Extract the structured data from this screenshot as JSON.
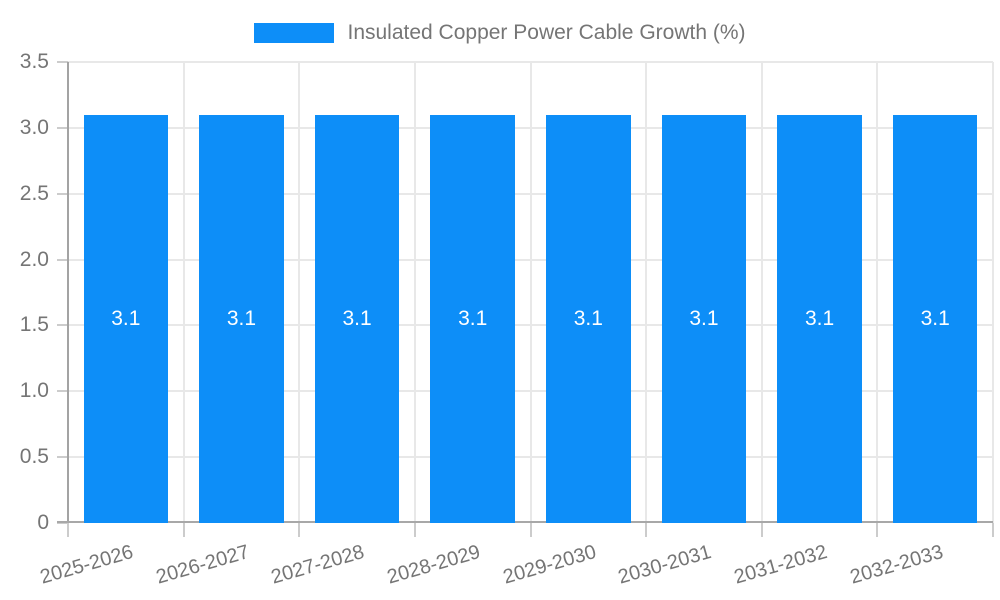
{
  "chart_data": {
    "type": "bar",
    "title": "Insulated Copper Power Cable Growth (%)",
    "legend": {
      "position": "top",
      "entries": [
        "Insulated Copper Power Cable Growth (%)"
      ]
    },
    "categories": [
      "2025-2026",
      "2026-2027",
      "2027-2028",
      "2028-2029",
      "2029-2030",
      "2030-2031",
      "2031-2032",
      "2032-2033"
    ],
    "series": [
      {
        "name": "Insulated Copper Power Cable Growth (%)",
        "values": [
          3.1,
          3.1,
          3.1,
          3.1,
          3.1,
          3.1,
          3.1,
          3.1
        ],
        "bar_labels": [
          "3.1",
          "3.1",
          "3.1",
          "3.1",
          "3.1",
          "3.1",
          "3.1",
          "3.1"
        ]
      }
    ],
    "xlabel": "",
    "ylabel": "",
    "ylim": [
      0,
      3.5
    ],
    "ytick_labels": [
      "0",
      "0.5",
      "1.0",
      "1.5",
      "2.0",
      "2.5",
      "3.0",
      "3.5"
    ],
    "ytick_values": [
      0,
      0.5,
      1.0,
      1.5,
      2.0,
      2.5,
      3.0,
      3.5
    ],
    "grid": "on",
    "colors": {
      "bar": "#0d8ef8",
      "bar_value_label": "#ffffff",
      "grid_line": "#e8e8e8",
      "axis_line": "#a3a3a3",
      "tick_mark": "#cccccc",
      "tick_text": "#757575"
    }
  }
}
